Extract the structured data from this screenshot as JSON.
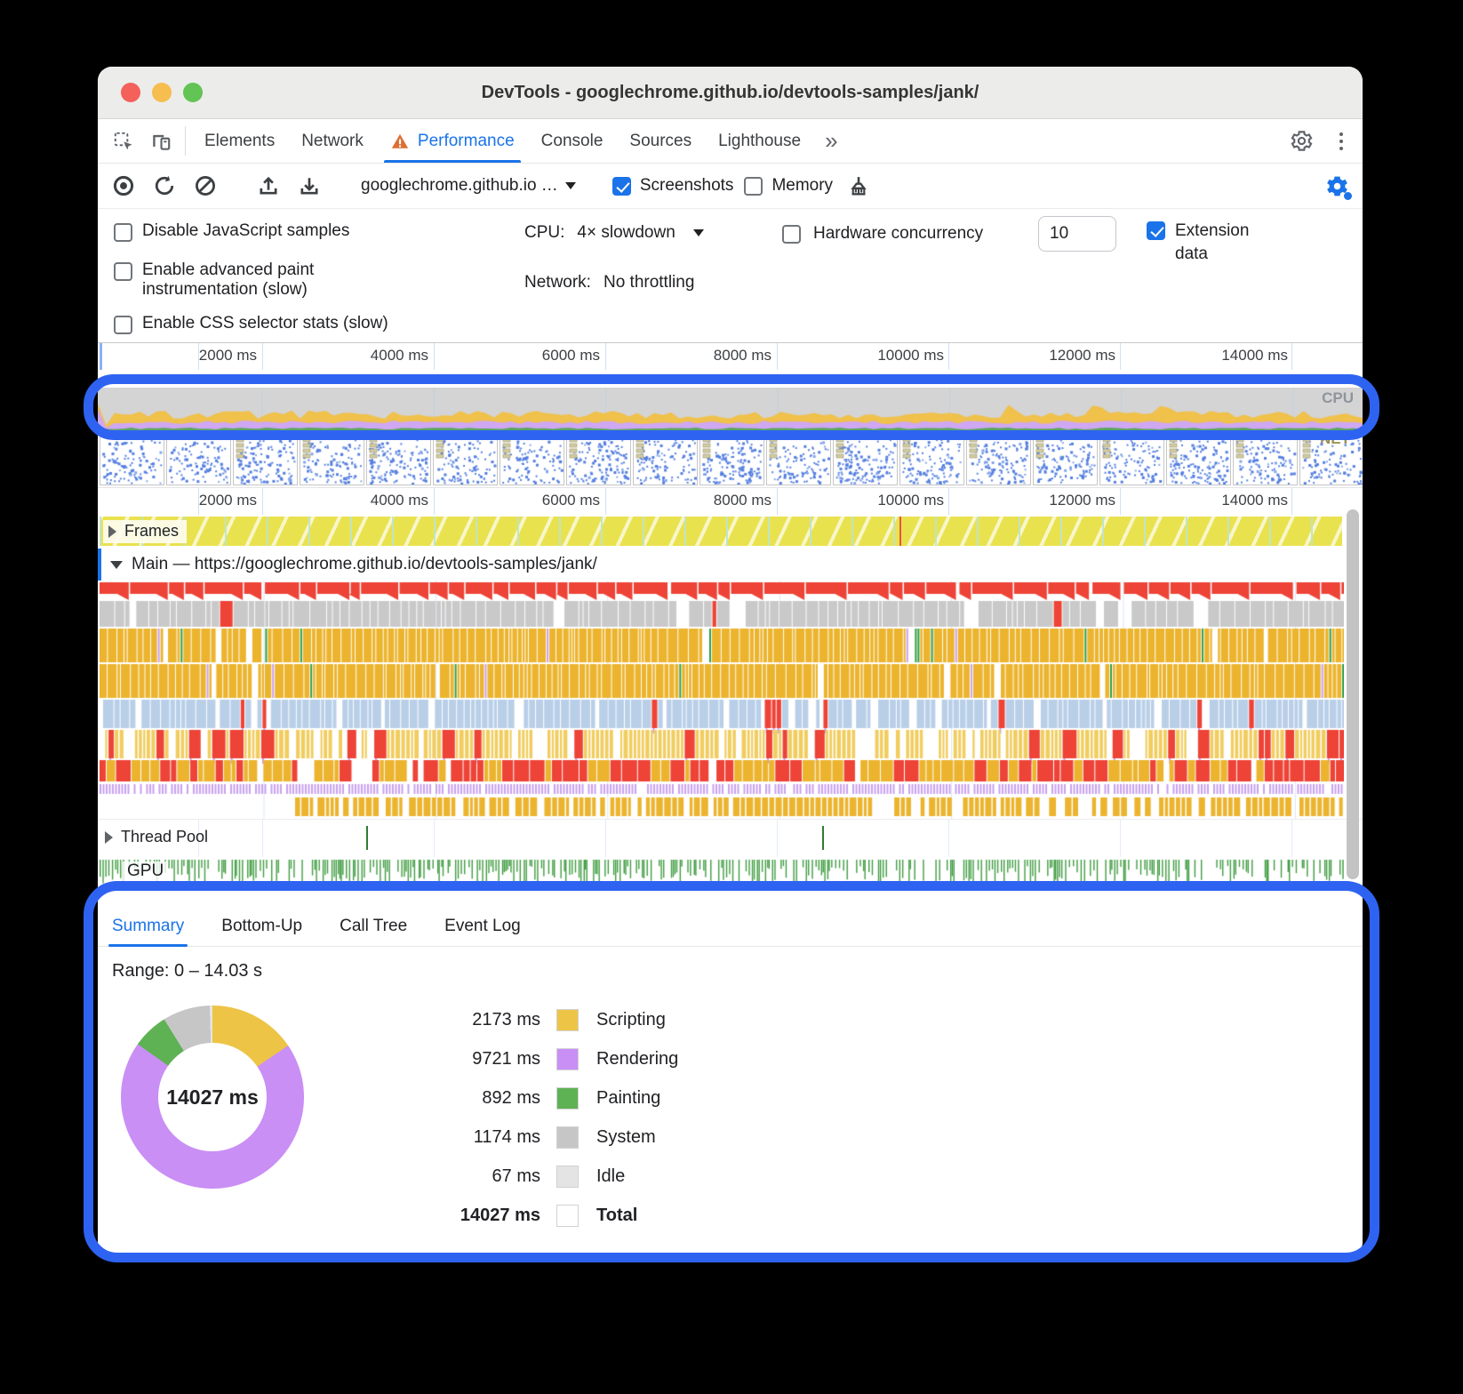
{
  "window": {
    "title": "DevTools - googlechrome.github.io/devtools-samples/jank/"
  },
  "tabs": {
    "items": [
      "Elements",
      "Network",
      "Performance",
      "Console",
      "Sources",
      "Lighthouse"
    ],
    "active": "Performance",
    "more": "»"
  },
  "toolbar": {
    "page_select": "googlechrome.github.io …",
    "screenshots_label": "Screenshots",
    "memory_label": "Memory"
  },
  "settings": {
    "disable_js": "Disable JavaScript samples",
    "advanced_paint": "Enable advanced paint instrumentation (slow)",
    "css_selector_stats": "Enable CSS selector stats (slow)",
    "cpu_label": "CPU:",
    "cpu_value": "4× slowdown",
    "network_label": "Network:",
    "network_value": "No throttling",
    "hw_label": "Hardware concurrency",
    "hw_value": "10",
    "extension_label": "Extension data"
  },
  "timeline": {
    "ticks": [
      "2000 ms",
      "4000 ms",
      "6000 ms",
      "8000 ms",
      "10000 ms",
      "12000 ms",
      "14000 ms"
    ]
  },
  "overview": {
    "cpu_label": "CPU",
    "net_label": "NET"
  },
  "tracks": {
    "frames_label": "Frames",
    "main_label": "Main — https://googlechrome.github.io/devtools-samples/jank/",
    "thread_pool_label": "Thread Pool",
    "gpu_label": "GPU"
  },
  "summary": {
    "tabs": [
      "Summary",
      "Bottom-Up",
      "Call Tree",
      "Event Log"
    ],
    "active_tab": "Summary",
    "range": "Range: 0 – 14.03 s"
  },
  "chart_data": {
    "type": "pie",
    "title": "Range: 0 – 14.03 s",
    "center_label": "14027 ms",
    "categories": [
      "Scripting",
      "Rendering",
      "Painting",
      "System",
      "Idle"
    ],
    "values": [
      2173,
      9721,
      892,
      1174,
      67
    ],
    "unit": "ms",
    "total_ms": 14027,
    "colors": [
      "#edc445",
      "#c98ff5",
      "#5fb254",
      "#c6c6c6",
      "#e4e4e4"
    ],
    "legend": [
      {
        "value": "2173 ms",
        "label": "Scripting",
        "color": "#edc445"
      },
      {
        "value": "9721 ms",
        "label": "Rendering",
        "color": "#c98ff5"
      },
      {
        "value": "892 ms",
        "label": "Painting",
        "color": "#5fb254"
      },
      {
        "value": "1174 ms",
        "label": "System",
        "color": "#c6c6c6"
      },
      {
        "value": "67 ms",
        "label": "Idle",
        "color": "#e4e4e4"
      },
      {
        "value": "14027 ms",
        "label": "Total",
        "color": "#ffffff"
      }
    ]
  },
  "colors": {
    "accent": "#1a73e8",
    "highlight_ring": "#2e63f2",
    "scripting": "#ecb42e",
    "scripting_pale": "#f1cd5f",
    "rendering": "#c9a0f0",
    "painting": "#2f9e44",
    "system_gray": "#c9c9c9",
    "long_task_red": "#ee4337",
    "parse_blue": "#b9cfe8",
    "frames_yellow": "#e9e24f",
    "gpu_green": "#3f9c41",
    "cpu_strip_bg": "#d4d4d4",
    "cpu_strip_yellow": "#f0c14b",
    "cpu_strip_purple": "#cfa7f2",
    "cpu_strip_green": "#58a65f",
    "filmstrip_dot_blue": "#557fe0"
  }
}
